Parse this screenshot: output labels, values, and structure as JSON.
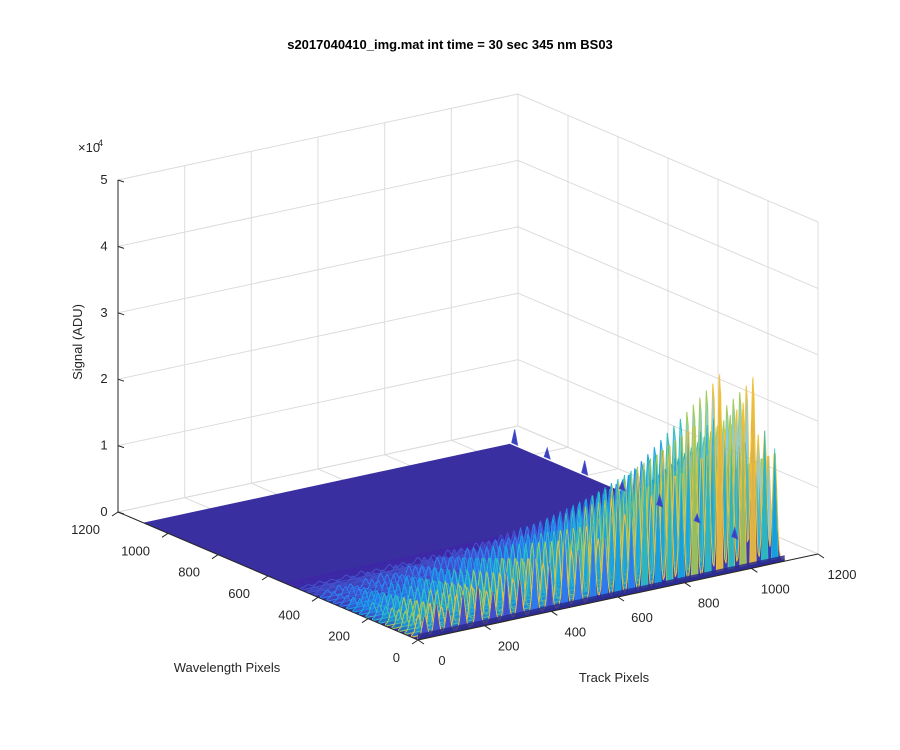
{
  "chart_data": {
    "type": "surface",
    "title": "s2017040410_img.mat int time = 30 sec  345 nm BS03",
    "xlabel": "Track Pixels",
    "ylabel": "Wavelength Pixels",
    "zlabel": "Signal (ADU)",
    "zexponent": "×10",
    "zexponent_power": "4",
    "xlim": [
      0,
      1200
    ],
    "ylim": [
      0,
      1200
    ],
    "zlim": [
      0,
      50000
    ],
    "x_ticks": [
      "0",
      "200",
      "400",
      "600",
      "800",
      "1000",
      "1200"
    ],
    "y_ticks": [
      "0",
      "200",
      "400",
      "600",
      "800",
      "1000",
      "1200"
    ],
    "z_ticks": [
      "0",
      "1",
      "2",
      "3",
      "4",
      "5"
    ],
    "surface_extent": {
      "x": [
        0,
        1100
      ],
      "y": [
        0,
        1100
      ]
    },
    "grid": true,
    "colormap": [
      "#3e26a8",
      "#4352ce",
      "#2c82f5",
      "#17a8e2",
      "#2fc1c1",
      "#a2cc5a",
      "#f0c03b"
    ],
    "peaks_along_track_at_wavelength_0": [
      {
        "x": 20,
        "z": 3000
      },
      {
        "x": 55,
        "z": 4500
      },
      {
        "x": 90,
        "z": 3500
      },
      {
        "x": 135,
        "z": 5000
      },
      {
        "x": 180,
        "z": 6000
      },
      {
        "x": 225,
        "z": 4500
      },
      {
        "x": 265,
        "z": 7000
      },
      {
        "x": 305,
        "z": 5500
      },
      {
        "x": 350,
        "z": 8500
      },
      {
        "x": 395,
        "z": 7000
      },
      {
        "x": 440,
        "z": 10000
      },
      {
        "x": 480,
        "z": 8000
      },
      {
        "x": 525,
        "z": 11500
      },
      {
        "x": 560,
        "z": 9000
      },
      {
        "x": 600,
        "z": 15000
      },
      {
        "x": 640,
        "z": 12000
      },
      {
        "x": 680,
        "z": 18000
      },
      {
        "x": 720,
        "z": 14000
      },
      {
        "x": 755,
        "z": 21000
      },
      {
        "x": 790,
        "z": 17000
      },
      {
        "x": 830,
        "z": 24000
      },
      {
        "x": 870,
        "z": 19000
      },
      {
        "x": 905,
        "z": 30000
      },
      {
        "x": 940,
        "z": 22000
      },
      {
        "x": 975,
        "z": 25000
      },
      {
        "x": 1005,
        "z": 28500
      },
      {
        "x": 1040,
        "z": 20000
      },
      {
        "x": 1070,
        "z": 17000
      }
    ],
    "peaks_along_wavelength_at_track_1100": [
      {
        "y": 200,
        "z": 1500
      },
      {
        "y": 350,
        "z": 1200
      },
      {
        "y": 500,
        "z": 1700
      },
      {
        "y": 650,
        "z": 1300
      },
      {
        "y": 800,
        "z": 2000
      },
      {
        "y": 950,
        "z": 1500
      },
      {
        "y": 1080,
        "z": 2200
      }
    ]
  }
}
